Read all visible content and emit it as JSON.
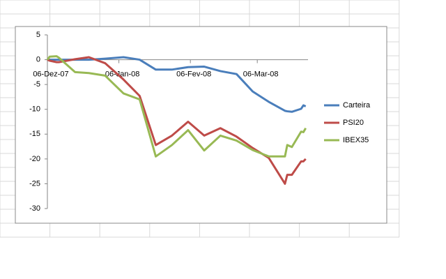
{
  "chart_data": {
    "type": "line",
    "x": [
      "2007-12-06",
      "2007-12-07",
      "2007-12-10",
      "2007-12-11",
      "2007-12-18",
      "2007-12-24",
      "2007-12-31",
      "2008-01-08",
      "2008-01-15",
      "2008-01-22",
      "2008-01-29",
      "2008-02-05",
      "2008-02-12",
      "2008-02-19",
      "2008-02-26",
      "2008-03-04",
      "2008-03-11",
      "2008-03-18",
      "2008-03-19",
      "2008-03-21",
      "2008-03-25",
      "2008-03-26",
      "2008-03-27"
    ],
    "series": [
      {
        "name": "Carteira",
        "color": "#4a7ebb",
        "values": [
          0,
          0,
          0,
          0,
          0,
          0,
          0.2,
          0.5,
          0,
          -2,
          -2,
          -1.5,
          -1.4,
          -2.3,
          -2.9,
          -6.4,
          -8.5,
          -10.3,
          -10.4,
          -10.5,
          -9.9,
          -9.2,
          -9.4
        ]
      },
      {
        "name": "PSI20",
        "color": "#be4b48",
        "values": [
          0,
          -0.2,
          -0.5,
          -0.5,
          0.1,
          0.5,
          -0.7,
          -4,
          -7.3,
          -17.2,
          -15.3,
          -12.5,
          -15.3,
          -13.8,
          -15.5,
          -17.8,
          -19.8,
          -25,
          -23.2,
          -23.2,
          -20.5,
          -20.5,
          -20
        ]
      },
      {
        "name": "IBEX35",
        "color": "#98b954",
        "values": [
          0,
          0.6,
          0.7,
          0.4,
          -2.5,
          -2.7,
          -3.2,
          -6.8,
          -8,
          -19.5,
          -17.2,
          -14.2,
          -18.3,
          -15.3,
          -16.3,
          -18.2,
          -19.5,
          -19.5,
          -17.2,
          -17.6,
          -14.5,
          -14.6,
          -13.8
        ]
      }
    ],
    "xlim": [
      "2007-12-06",
      "2008-03-28"
    ],
    "xticks": [
      {
        "value": "2007-12-06",
        "label": "06-Dez-07"
      },
      {
        "value": "2008-01-06",
        "label": "06-Jan-08"
      },
      {
        "value": "2008-02-06",
        "label": "06-Fev-08"
      },
      {
        "value": "2008-03-06",
        "label": "06-Mar-08"
      }
    ],
    "ylim": [
      -30,
      5
    ],
    "yticks": [
      5,
      0,
      -5,
      -10,
      -15,
      -20,
      -25,
      -30
    ],
    "grid": false,
    "legend": "right"
  }
}
